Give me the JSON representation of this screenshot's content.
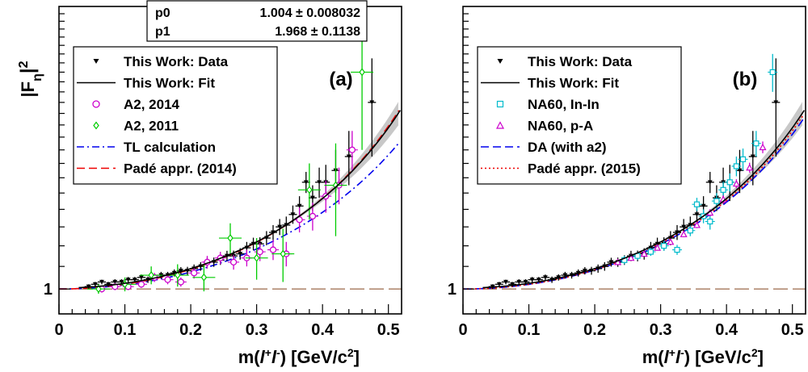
{
  "chart_data": [
    {
      "panel": "(a)",
      "type": "scatter",
      "ylabel_base": "|F",
      "ylabel_sub": "η",
      "ylabel_sup": "2",
      "xlabel_main": "m(",
      "xlabel_l": "l",
      "xlabel_plus": "+",
      "xlabel_minus": "-",
      "xlabel_unit": ")  [GeV/c",
      "xlabel_unitsup": "2",
      "xlabel_close": "]",
      "xlim": [
        0,
        0.52
      ],
      "ylim": [
        0.9,
        3.3
      ],
      "log_y": true,
      "x_ticks": [
        "0",
        "0.1",
        "0.2",
        "0.3",
        "0.4",
        "0.5"
      ],
      "x_tick_values": [
        0,
        0.1,
        0.2,
        0.3,
        0.4,
        0.5
      ],
      "y_ticks": [
        "1"
      ],
      "y_tick_values": [
        1
      ],
      "stats": {
        "p0_label": "p0",
        "p0_value": "1.004 ± 0.008032",
        "p1_label": "p1",
        "p1_value": "1.968 ± 0.1138"
      },
      "legend": [
        {
          "label": "This Work: Data",
          "marker": "triangle-down",
          "color": "#000000"
        },
        {
          "label": "This Work: Fit",
          "marker": "line",
          "color": "#000000"
        },
        {
          "label": "A2, 2014",
          "marker": "circle-open",
          "color": "#cc00cc"
        },
        {
          "label": "A2, 2011",
          "marker": "diamond-open",
          "color": "#00cc00"
        },
        {
          "label": "TL calculation",
          "marker": "dashdot",
          "color": "#0000ee"
        },
        {
          "label": "Padé appr. (2014)",
          "marker": "dash",
          "color": "#ee0000"
        }
      ],
      "fit": {
        "p0": 1.004,
        "p1": 1.968
      },
      "series": [
        {
          "name": "This Work: Data",
          "style": "data",
          "color": "#000000",
          "points": [
            {
              "x": 0.045,
              "y": 1.01,
              "ey": 0.01
            },
            {
              "x": 0.055,
              "y": 1.02,
              "ey": 0.01
            },
            {
              "x": 0.065,
              "y": 1.03,
              "ey": 0.01
            },
            {
              "x": 0.075,
              "y": 1.02,
              "ey": 0.01
            },
            {
              "x": 0.085,
              "y": 1.03,
              "ey": 0.012
            },
            {
              "x": 0.095,
              "y": 1.03,
              "ey": 0.012
            },
            {
              "x": 0.105,
              "y": 1.04,
              "ey": 0.012
            },
            {
              "x": 0.115,
              "y": 1.04,
              "ey": 0.012
            },
            {
              "x": 0.125,
              "y": 1.05,
              "ey": 0.013
            },
            {
              "x": 0.135,
              "y": 1.04,
              "ey": 0.014
            },
            {
              "x": 0.145,
              "y": 1.05,
              "ey": 0.014
            },
            {
              "x": 0.155,
              "y": 1.06,
              "ey": 0.015
            },
            {
              "x": 0.165,
              "y": 1.06,
              "ey": 0.015
            },
            {
              "x": 0.175,
              "y": 1.07,
              "ey": 0.016
            },
            {
              "x": 0.185,
              "y": 1.08,
              "ey": 0.017
            },
            {
              "x": 0.195,
              "y": 1.08,
              "ey": 0.018
            },
            {
              "x": 0.205,
              "y": 1.09,
              "ey": 0.019
            },
            {
              "x": 0.215,
              "y": 1.1,
              "ey": 0.02
            },
            {
              "x": 0.225,
              "y": 1.12,
              "ey": 0.021
            },
            {
              "x": 0.235,
              "y": 1.12,
              "ey": 0.022
            },
            {
              "x": 0.245,
              "y": 1.13,
              "ey": 0.023
            },
            {
              "x": 0.255,
              "y": 1.15,
              "ey": 0.025
            },
            {
              "x": 0.265,
              "y": 1.15,
              "ey": 0.026
            },
            {
              "x": 0.275,
              "y": 1.16,
              "ey": 0.028
            },
            {
              "x": 0.285,
              "y": 1.19,
              "ey": 0.03
            },
            {
              "x": 0.295,
              "y": 1.21,
              "ey": 0.032
            },
            {
              "x": 0.305,
              "y": 1.21,
              "ey": 0.034
            },
            {
              "x": 0.315,
              "y": 1.24,
              "ey": 0.037
            },
            {
              "x": 0.325,
              "y": 1.27,
              "ey": 0.04
            },
            {
              "x": 0.335,
              "y": 1.3,
              "ey": 0.044
            },
            {
              "x": 0.345,
              "y": 1.31,
              "ey": 0.048
            },
            {
              "x": 0.355,
              "y": 1.37,
              "ey": 0.053
            },
            {
              "x": 0.365,
              "y": 1.42,
              "ey": 0.06
            },
            {
              "x": 0.375,
              "y": 1.57,
              "ey": 0.07
            },
            {
              "x": 0.385,
              "y": 1.47,
              "ey": 0.08
            },
            {
              "x": 0.395,
              "y": 1.57,
              "ey": 0.1
            },
            {
              "x": 0.405,
              "y": 1.57,
              "ey": 0.12
            },
            {
              "x": 0.42,
              "y": 1.65,
              "ey": 0.15
            },
            {
              "x": 0.44,
              "y": 1.75,
              "ey": 0.2
            },
            {
              "x": 0.475,
              "y": 2.2,
              "ey": 0.45
            }
          ]
        },
        {
          "name": "A2, 2014",
          "style": "circle",
          "color": "#cc00cc",
          "points": [
            {
              "x": 0.065,
              "y": 1.0,
              "ey": 0.015
            },
            {
              "x": 0.085,
              "y": 1.01,
              "ey": 0.015
            },
            {
              "x": 0.105,
              "y": 1.01,
              "ey": 0.015
            },
            {
              "x": 0.125,
              "y": 1.02,
              "ey": 0.015
            },
            {
              "x": 0.145,
              "y": 1.05,
              "ey": 0.02
            },
            {
              "x": 0.165,
              "y": 1.04,
              "ey": 0.02
            },
            {
              "x": 0.185,
              "y": 1.03,
              "ey": 0.02
            },
            {
              "x": 0.205,
              "y": 1.07,
              "ey": 0.025
            },
            {
              "x": 0.225,
              "y": 1.12,
              "ey": 0.03
            },
            {
              "x": 0.245,
              "y": 1.14,
              "ey": 0.03
            },
            {
              "x": 0.265,
              "y": 1.12,
              "ey": 0.035
            },
            {
              "x": 0.285,
              "y": 1.14,
              "ey": 0.04
            },
            {
              "x": 0.305,
              "y": 1.17,
              "ey": 0.045
            },
            {
              "x": 0.325,
              "y": 1.18,
              "ey": 0.05
            },
            {
              "x": 0.345,
              "y": 1.16,
              "ey": 0.06
            },
            {
              "x": 0.365,
              "y": 1.34,
              "ey": 0.07
            },
            {
              "x": 0.385,
              "y": 1.36,
              "ey": 0.08
            },
            {
              "x": 0.405,
              "y": 1.48,
              "ey": 0.1
            },
            {
              "x": 0.425,
              "y": 1.55,
              "ey": 0.12
            },
            {
              "x": 0.445,
              "y": 1.8,
              "ey": 0.15
            }
          ]
        },
        {
          "name": "A2, 2011",
          "style": "diamond",
          "color": "#00cc00",
          "points": [
            {
              "x": 0.06,
              "y": 1.0,
              "ey": 0.02
            },
            {
              "x": 0.1,
              "y": 1.02,
              "ey": 0.03
            },
            {
              "x": 0.14,
              "y": 1.06,
              "ey": 0.04
            },
            {
              "x": 0.18,
              "y": 1.06,
              "ey": 0.05
            },
            {
              "x": 0.22,
              "y": 1.05,
              "ey": 0.06
            },
            {
              "x": 0.26,
              "y": 1.24,
              "ey": 0.08
            },
            {
              "x": 0.3,
              "y": 1.14,
              "ey": 0.1
            },
            {
              "x": 0.34,
              "y": 1.16,
              "ey": 0.13
            },
            {
              "x": 0.38,
              "y": 1.52,
              "ey": 0.18
            },
            {
              "x": 0.42,
              "y": 1.55,
              "ey": 0.3
            },
            {
              "x": 0.46,
              "y": 2.5,
              "ey": 0.7
            }
          ]
        }
      ],
      "curves": [
        {
          "name": "TL calculation",
          "style": "dashdot",
          "color": "#0000ee",
          "form": "pole",
          "p1": 1.73
        },
        {
          "name": "Padé appr. (2014)",
          "style": "dash",
          "color": "#ee0000",
          "form": "pole",
          "p1": 1.99
        }
      ]
    },
    {
      "panel": "(b)",
      "type": "scatter",
      "ylabel_base": "",
      "xlim": [
        0,
        0.52
      ],
      "ylim": [
        0.9,
        3.3
      ],
      "log_y": true,
      "x_ticks": [
        "0",
        "0.1",
        "0.2",
        "0.3",
        "0.4",
        "0.5"
      ],
      "x_tick_values": [
        0,
        0.1,
        0.2,
        0.3,
        0.4,
        0.5
      ],
      "y_ticks": [
        "1"
      ],
      "y_tick_values": [
        1
      ],
      "xlabel_main": "m(",
      "xlabel_l": "l",
      "xlabel_plus": "+",
      "xlabel_minus": "-",
      "xlabel_unit": ")  [GeV/c",
      "xlabel_unitsup": "2",
      "xlabel_close": "]",
      "legend": [
        {
          "label": "This Work: Data",
          "marker": "triangle-down",
          "color": "#000000"
        },
        {
          "label": "This Work: Fit",
          "marker": "line",
          "color": "#000000"
        },
        {
          "label": "NA60, In-In",
          "marker": "square-open",
          "color": "#00bbcc"
        },
        {
          "label": "NA60, p-A",
          "marker": "triangle-open",
          "color": "#cc00cc"
        },
        {
          "label": "DA (with a2)",
          "marker": "dash",
          "color": "#0000ee"
        },
        {
          "label": "Padé appr. (2015)",
          "marker": "dot",
          "color": "#ee0000"
        }
      ],
      "fit": {
        "p0": 1.004,
        "p1": 1.968
      },
      "series": [
        {
          "name": "This Work: Data",
          "style": "data",
          "color": "#000000",
          "points": [
            {
              "x": 0.045,
              "y": 1.01,
              "ey": 0.01
            },
            {
              "x": 0.055,
              "y": 1.02,
              "ey": 0.01
            },
            {
              "x": 0.065,
              "y": 1.03,
              "ey": 0.01
            },
            {
              "x": 0.075,
              "y": 1.02,
              "ey": 0.01
            },
            {
              "x": 0.085,
              "y": 1.03,
              "ey": 0.012
            },
            {
              "x": 0.095,
              "y": 1.03,
              "ey": 0.012
            },
            {
              "x": 0.105,
              "y": 1.04,
              "ey": 0.012
            },
            {
              "x": 0.115,
              "y": 1.04,
              "ey": 0.012
            },
            {
              "x": 0.125,
              "y": 1.05,
              "ey": 0.013
            },
            {
              "x": 0.135,
              "y": 1.04,
              "ey": 0.014
            },
            {
              "x": 0.145,
              "y": 1.05,
              "ey": 0.014
            },
            {
              "x": 0.155,
              "y": 1.06,
              "ey": 0.015
            },
            {
              "x": 0.165,
              "y": 1.06,
              "ey": 0.015
            },
            {
              "x": 0.175,
              "y": 1.07,
              "ey": 0.016
            },
            {
              "x": 0.185,
              "y": 1.08,
              "ey": 0.017
            },
            {
              "x": 0.195,
              "y": 1.08,
              "ey": 0.018
            },
            {
              "x": 0.205,
              "y": 1.09,
              "ey": 0.019
            },
            {
              "x": 0.215,
              "y": 1.1,
              "ey": 0.02
            },
            {
              "x": 0.225,
              "y": 1.12,
              "ey": 0.021
            },
            {
              "x": 0.235,
              "y": 1.12,
              "ey": 0.022
            },
            {
              "x": 0.245,
              "y": 1.13,
              "ey": 0.023
            },
            {
              "x": 0.255,
              "y": 1.15,
              "ey": 0.025
            },
            {
              "x": 0.265,
              "y": 1.15,
              "ey": 0.026
            },
            {
              "x": 0.275,
              "y": 1.16,
              "ey": 0.028
            },
            {
              "x": 0.285,
              "y": 1.19,
              "ey": 0.03
            },
            {
              "x": 0.295,
              "y": 1.21,
              "ey": 0.032
            },
            {
              "x": 0.305,
              "y": 1.21,
              "ey": 0.034
            },
            {
              "x": 0.315,
              "y": 1.24,
              "ey": 0.037
            },
            {
              "x": 0.325,
              "y": 1.27,
              "ey": 0.04
            },
            {
              "x": 0.335,
              "y": 1.3,
              "ey": 0.044
            },
            {
              "x": 0.345,
              "y": 1.31,
              "ey": 0.048
            },
            {
              "x": 0.355,
              "y": 1.37,
              "ey": 0.053
            },
            {
              "x": 0.365,
              "y": 1.42,
              "ey": 0.06
            },
            {
              "x": 0.375,
              "y": 1.57,
              "ey": 0.07
            },
            {
              "x": 0.385,
              "y": 1.47,
              "ey": 0.08
            },
            {
              "x": 0.395,
              "y": 1.57,
              "ey": 0.1
            },
            {
              "x": 0.405,
              "y": 1.57,
              "ey": 0.12
            },
            {
              "x": 0.42,
              "y": 1.65,
              "ey": 0.15
            },
            {
              "x": 0.44,
              "y": 1.75,
              "ey": 0.2
            },
            {
              "x": 0.475,
              "y": 2.2,
              "ey": 0.45
            }
          ]
        },
        {
          "name": "NA60, In-In",
          "style": "square",
          "color": "#00bbcc",
          "points": [
            {
              "x": 0.245,
              "y": 1.13,
              "ey": 0.02
            },
            {
              "x": 0.265,
              "y": 1.15,
              "ey": 0.02
            },
            {
              "x": 0.285,
              "y": 1.17,
              "ey": 0.02
            },
            {
              "x": 0.305,
              "y": 1.2,
              "ey": 0.025
            },
            {
              "x": 0.325,
              "y": 1.18,
              "ey": 0.025
            },
            {
              "x": 0.345,
              "y": 1.28,
              "ey": 0.03
            },
            {
              "x": 0.355,
              "y": 1.43,
              "ey": 0.04
            },
            {
              "x": 0.365,
              "y": 1.36,
              "ey": 0.04
            },
            {
              "x": 0.375,
              "y": 1.33,
              "ey": 0.045
            },
            {
              "x": 0.385,
              "y": 1.45,
              "ey": 0.05
            },
            {
              "x": 0.395,
              "y": 1.52,
              "ey": 0.055
            },
            {
              "x": 0.405,
              "y": 1.57,
              "ey": 0.06
            },
            {
              "x": 0.415,
              "y": 1.68,
              "ey": 0.07
            },
            {
              "x": 0.425,
              "y": 1.73,
              "ey": 0.08
            },
            {
              "x": 0.445,
              "y": 1.85,
              "ey": 0.1
            },
            {
              "x": 0.47,
              "y": 2.5,
              "ey": 0.2
            }
          ]
        },
        {
          "name": "NA60, p-A",
          "style": "triangle",
          "color": "#cc00cc",
          "points": [
            {
              "x": 0.235,
              "y": 1.12,
              "ey": 0.01
            },
            {
              "x": 0.255,
              "y": 1.14,
              "ey": 0.01
            },
            {
              "x": 0.275,
              "y": 1.16,
              "ey": 0.012
            },
            {
              "x": 0.295,
              "y": 1.19,
              "ey": 0.012
            },
            {
              "x": 0.315,
              "y": 1.22,
              "ey": 0.014
            },
            {
              "x": 0.335,
              "y": 1.26,
              "ey": 0.015
            },
            {
              "x": 0.355,
              "y": 1.31,
              "ey": 0.017
            },
            {
              "x": 0.375,
              "y": 1.38,
              "ey": 0.02
            },
            {
              "x": 0.395,
              "y": 1.46,
              "ey": 0.025
            },
            {
              "x": 0.415,
              "y": 1.56,
              "ey": 0.03
            },
            {
              "x": 0.435,
              "y": 1.67,
              "ey": 0.035
            },
            {
              "x": 0.455,
              "y": 1.82,
              "ey": 0.045
            }
          ]
        }
      ],
      "curves": [
        {
          "name": "DA (with a2)",
          "style": "dash",
          "color": "#0000ee",
          "form": "pole",
          "p1": 1.92
        },
        {
          "name": "Padé appr. (2015)",
          "style": "dot",
          "color": "#ee0000",
          "form": "pole",
          "p1": 1.95
        }
      ]
    }
  ]
}
